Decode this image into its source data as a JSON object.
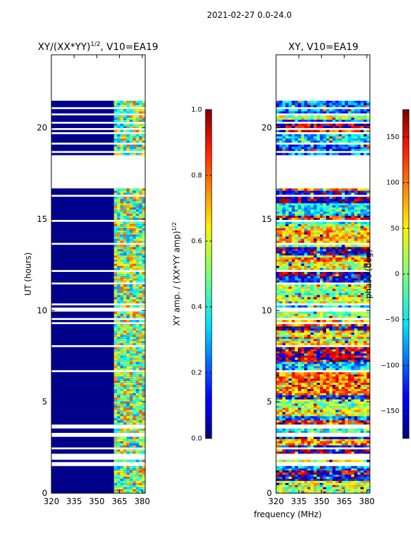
{
  "suptitle": "2021-02-27 0.0-24.0",
  "chart_data": [
    {
      "type": "heatmap",
      "title_main": "XY/(XX*YY)",
      "title_sup": "1/2",
      "title_rest": ", V10=EA19",
      "xlabel": "",
      "ylabel": "UT (hours)",
      "xlim": [
        320,
        382
      ],
      "ylim": [
        0,
        24
      ],
      "xticks": [
        320,
        335,
        350,
        365,
        380
      ],
      "yticks": [
        0,
        5,
        10,
        15,
        20
      ],
      "colorscale": "jet",
      "data_blocks_hours": [
        [
          0.0,
          16.75
        ],
        [
          18.5,
          21.5
        ]
      ],
      "bright_band_mhz": [
        363,
        382
      ],
      "colorbar": {
        "label_main": "XY amp. / (XX*YY amp)",
        "label_sup": "1/2",
        "range": [
          0.0,
          1.0
        ],
        "ticks": [
          "0.0",
          "0.2",
          "0.4",
          "0.6",
          "0.8",
          "1.0"
        ],
        "tick_values": [
          0.0,
          0.2,
          0.4,
          0.6,
          0.8,
          1.0
        ]
      }
    },
    {
      "type": "heatmap",
      "title": "XY, V10=EA19",
      "xlabel": "frequency (MHz)",
      "ylabel": "",
      "xlim": [
        320,
        382
      ],
      "ylim": [
        0,
        24
      ],
      "xticks": [
        320,
        335,
        350,
        365,
        380
      ],
      "yticks": [
        0,
        5,
        10,
        15,
        20
      ],
      "colorscale": "jet",
      "data_blocks_hours": [
        [
          0.0,
          16.75
        ],
        [
          18.5,
          21.5
        ]
      ],
      "colorbar": {
        "label": "phase (deg)",
        "range": [
          -180,
          180
        ],
        "ticks": [
          "150",
          "100",
          "50",
          "0",
          "−50",
          "−100",
          "−150"
        ],
        "tick_values": [
          150,
          100,
          50,
          0,
          -50,
          -100,
          -150
        ]
      }
    }
  ]
}
